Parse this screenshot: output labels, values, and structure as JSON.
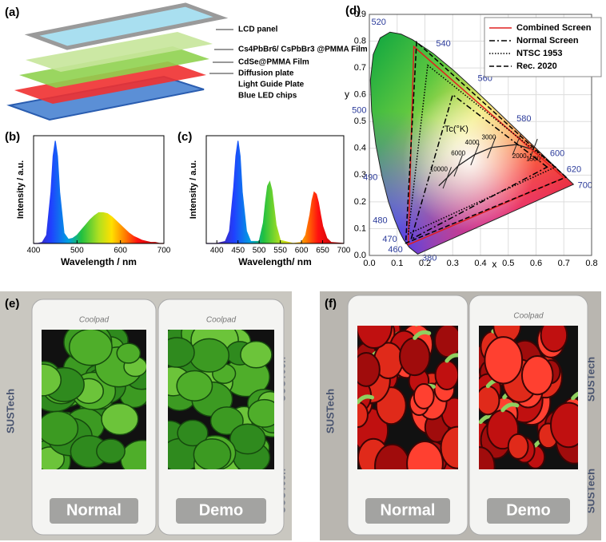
{
  "diagram": {
    "panel_label": "(a)",
    "layers": [
      "LCD panel",
      "Cs4PbBr6/ CsPbBr3 @PMMA Film",
      "CdSe@PMMA Film",
      "Diffusion plate",
      "Light Guide Plate",
      "Blue LED chips"
    ]
  },
  "chart_data": [
    {
      "type": "spectrum",
      "panel_label": "(b)",
      "xlabel": "Wavelength / nm",
      "ylabel": "Intensity / a.u.",
      "x": [
        400,
        410,
        420,
        430,
        440,
        445,
        450,
        455,
        460,
        470,
        480,
        490,
        500,
        510,
        520,
        530,
        540,
        550,
        560,
        570,
        580,
        590,
        600,
        610,
        620,
        630,
        640,
        650,
        660,
        670,
        680,
        690,
        700
      ],
      "values": [
        0,
        0,
        0.01,
        0.08,
        0.5,
        0.85,
        1.0,
        0.85,
        0.5,
        0.1,
        0.04,
        0.05,
        0.08,
        0.13,
        0.18,
        0.23,
        0.27,
        0.3,
        0.3,
        0.29,
        0.26,
        0.22,
        0.18,
        0.14,
        0.1,
        0.07,
        0.05,
        0.03,
        0.02,
        0.01,
        0.01,
        0,
        0
      ],
      "xlim": [
        400,
        700
      ],
      "xticks": [
        400,
        500,
        600,
        700
      ],
      "ylim": [
        0,
        1.05
      ]
    },
    {
      "type": "spectrum",
      "panel_label": "(c)",
      "xlabel": "Wavelength/ nm",
      "ylabel": "Intensity / a.u.",
      "x": [
        375,
        400,
        420,
        430,
        440,
        445,
        450,
        455,
        460,
        470,
        480,
        500,
        510,
        515,
        520,
        525,
        530,
        535,
        540,
        550,
        580,
        600,
        610,
        620,
        625,
        630,
        635,
        640,
        645,
        650,
        660,
        670,
        700
      ],
      "values": [
        0,
        0,
        0.02,
        0.12,
        0.55,
        0.85,
        1.0,
        0.85,
        0.5,
        0.12,
        0.02,
        0.02,
        0.2,
        0.4,
        0.56,
        0.6,
        0.52,
        0.35,
        0.18,
        0.03,
        0,
        0.01,
        0.08,
        0.28,
        0.42,
        0.5,
        0.48,
        0.4,
        0.28,
        0.17,
        0.05,
        0.01,
        0
      ],
      "xlim": [
        375,
        700
      ],
      "xticks": [
        400,
        450,
        500,
        550,
        600,
        650,
        700
      ],
      "ylim": [
        0,
        1.05
      ]
    },
    {
      "type": "chromaticity",
      "panel_label": "(d)",
      "xlabel": "x",
      "ylabel": "y",
      "xlim": [
        0,
        0.8
      ],
      "ylim": [
        0,
        0.9
      ],
      "xticks": [
        {
          "value": 0,
          "label": "0.0"
        },
        0.1,
        0.2,
        0.3,
        0.4,
        0.5,
        0.6,
        0.7,
        0.8
      ],
      "yticks": [
        {
          "value": 0,
          "label": "0.0"
        },
        0.1,
        0.2,
        0.3,
        0.4,
        0.5,
        0.6,
        0.7,
        0.8,
        0.9
      ],
      "grid": true,
      "legend": "top-right",
      "locus_labels": [
        380,
        460,
        470,
        480,
        490,
        500,
        520,
        540,
        560,
        580,
        600,
        620,
        700
      ],
      "cct_title": "Tc(°K)",
      "cct_labels": [
        10000,
        6000,
        4000,
        3000,
        2000,
        1500
      ],
      "series": [
        {
          "name": "Combined Screen",
          "color": "#e02020",
          "style": "solid",
          "x": [
            0.7,
            0.16,
            0.14
          ],
          "values": [
            0.29,
            0.78,
            0.04
          ]
        },
        {
          "name": "Normal Screen",
          "color": "#000000",
          "style": "dash-dot",
          "x": [
            0.64,
            0.3,
            0.15
          ],
          "values": [
            0.33,
            0.6,
            0.06
          ]
        },
        {
          "name": "NTSC 1953",
          "color": "#000000",
          "style": "dotted",
          "x": [
            0.67,
            0.21,
            0.14
          ],
          "values": [
            0.33,
            0.71,
            0.08
          ]
        },
        {
          "name": "Rec. 2020",
          "color": "#000000",
          "style": "dashed",
          "x": [
            0.708,
            0.17,
            0.131
          ],
          "values": [
            0.292,
            0.797,
            0.046
          ]
        }
      ]
    }
  ],
  "photos": [
    {
      "panel_label": "(e)",
      "watermark": "SUSTech",
      "phones": [
        {
          "brand": "Coolpad",
          "caption": "Normal"
        },
        {
          "brand": "Coolpad",
          "caption": "Demo"
        }
      ]
    },
    {
      "panel_label": "(f)",
      "watermark": "SUSTech",
      "phones": [
        {
          "caption": "Normal"
        },
        {
          "brand": "Coolpad",
          "caption": "Demo"
        }
      ]
    }
  ]
}
